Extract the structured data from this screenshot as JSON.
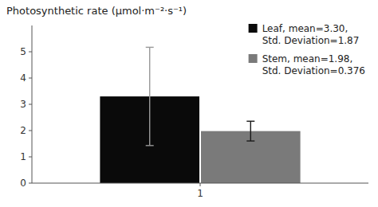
{
  "chart_data": {
    "type": "bar",
    "title": "Photosynthetic rate (μmol·m⁻²·s⁻¹)",
    "categories": [
      "1"
    ],
    "series": [
      {
        "name": "Leaf, mean=3.30,\nStd. Deviation=1.87",
        "color": "#0a0a0a",
        "values": [
          3.3
        ],
        "errors": [
          1.87
        ]
      },
      {
        "name": "Stem, mean=1.98,\nStd. Deviation=0.376",
        "color": "#7a7a7a",
        "values": [
          1.98
        ],
        "errors": [
          0.376
        ]
      }
    ],
    "ylim": [
      0,
      6
    ],
    "yticks": [
      0,
      1,
      2,
      3,
      4,
      5
    ],
    "grid": false,
    "legend": "upper right"
  }
}
